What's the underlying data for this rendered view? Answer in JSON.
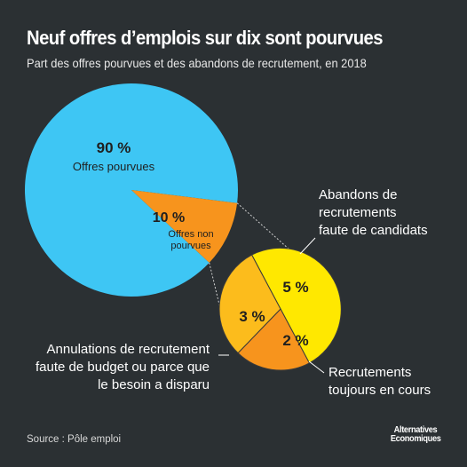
{
  "title": "Neuf offres d’emplois sur dix sont pourvues",
  "subtitle": "Part des offres pourvues et des abandons de recrutement, en 2018",
  "source": "Source : Pôle emploi",
  "logo": {
    "line1": "Alternatives",
    "line2": "Economiques"
  },
  "colors": {
    "background": "#2b3033",
    "filled": "#3ec6f4",
    "not_filled": "#f7941d",
    "abandon_candidats": "#ffe800",
    "abandon_budget": "#fcbc1c",
    "en_cours": "#f7941d"
  },
  "chart_data": [
    {
      "type": "pie",
      "slices": [
        {
          "label": "Offres pourvues",
          "value": 90,
          "value_label": "90 %"
        },
        {
          "label": "Offres non pourvues",
          "value": 10,
          "value_label": "10 %"
        }
      ]
    },
    {
      "type": "pie",
      "slices": [
        {
          "label": "Abandons de recrutements faute de candidats",
          "value": 5,
          "value_label": "5 %"
        },
        {
          "label": "Recrutements toujours en cours",
          "value": 2,
          "value_label": "2 %"
        },
        {
          "label": "Annulations de recrutement faute de budget ou parce que le besoin a disparu",
          "value": 3,
          "value_label": "3 %"
        }
      ]
    }
  ],
  "annotations": {
    "abandons": [
      "Abandons de",
      "recrutements",
      "faute de candidats"
    ],
    "annulations": [
      "Annulations de recrutement",
      "faute de budget ou parce que",
      "le besoin a disparu"
    ],
    "en_cours": [
      "Recrutements",
      "toujours en cours"
    ],
    "non_pourvues": [
      "Offres non",
      "pourvues"
    ]
  }
}
